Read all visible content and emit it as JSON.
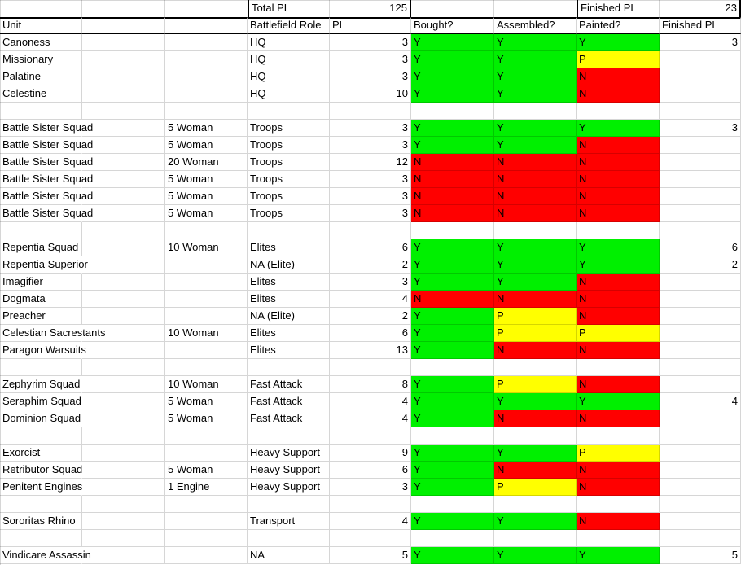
{
  "sheet": {
    "summary": {
      "total_pl_label": "Total PL",
      "total_pl_value": "125",
      "finished_pl_label": "Finished PL",
      "finished_pl_value": "23"
    },
    "headers": {
      "unit": "Unit",
      "role": "Battlefield Role",
      "pl": "PL",
      "bought": "Bought?",
      "assembled": "Assembled?",
      "painted": "Painted?",
      "finished_pl": "Finished PL"
    },
    "status_colors": {
      "Y": "#00f000",
      "P": "#ffff00",
      "N": "#ff0000"
    },
    "rows": [
      {
        "unit": "Canoness",
        "size": "",
        "role": "HQ",
        "pl": "3",
        "bought": "Y",
        "assembled": "Y",
        "painted": "Y",
        "finished": "3"
      },
      {
        "unit": "Missionary",
        "size": "",
        "role": "HQ",
        "pl": "3",
        "bought": "Y",
        "assembled": "Y",
        "painted": "P",
        "finished": ""
      },
      {
        "unit": "Palatine",
        "size": "",
        "role": "HQ",
        "pl": "3",
        "bought": "Y",
        "assembled": "Y",
        "painted": "N",
        "finished": ""
      },
      {
        "unit": "Celestine",
        "size": "",
        "role": "HQ",
        "pl": "10",
        "bought": "Y",
        "assembled": "Y",
        "painted": "N",
        "finished": ""
      },
      {
        "unit": "",
        "size": "",
        "role": "",
        "pl": "",
        "bought": "",
        "assembled": "",
        "painted": "",
        "finished": ""
      },
      {
        "unit": "Battle Sister Squad",
        "size": "5 Woman",
        "role": "Troops",
        "pl": "3",
        "bought": "Y",
        "assembled": "Y",
        "painted": "Y",
        "finished": "3"
      },
      {
        "unit": "Battle Sister Squad",
        "size": "5 Woman",
        "role": "Troops",
        "pl": "3",
        "bought": "Y",
        "assembled": "Y",
        "painted": "N",
        "finished": ""
      },
      {
        "unit": "Battle Sister Squad",
        "size": "20 Woman",
        "role": "Troops",
        "pl": "12",
        "bought": "N",
        "assembled": "N",
        "painted": "N",
        "finished": ""
      },
      {
        "unit": "Battle Sister Squad",
        "size": "5 Woman",
        "role": "Troops",
        "pl": "3",
        "bought": "N",
        "assembled": "N",
        "painted": "N",
        "finished": ""
      },
      {
        "unit": "Battle Sister Squad",
        "size": "5 Woman",
        "role": "Troops",
        "pl": "3",
        "bought": "N",
        "assembled": "N",
        "painted": "N",
        "finished": ""
      },
      {
        "unit": "Battle Sister Squad",
        "size": "5 Woman",
        "role": "Troops",
        "pl": "3",
        "bought": "N",
        "assembled": "N",
        "painted": "N",
        "finished": ""
      },
      {
        "unit": "",
        "size": "",
        "role": "",
        "pl": "",
        "bought": "",
        "assembled": "",
        "painted": "",
        "finished": ""
      },
      {
        "unit": "Repentia Squad",
        "size": "10 Woman",
        "role": "Elites",
        "pl": "6",
        "bought": "Y",
        "assembled": "Y",
        "painted": "Y",
        "finished": "6"
      },
      {
        "unit": "Repentia Superior",
        "size": "",
        "role": "NA (Elite)",
        "pl": "2",
        "bought": "Y",
        "assembled": "Y",
        "painted": "Y",
        "finished": "2"
      },
      {
        "unit": "Imagifier",
        "size": "",
        "role": "Elites",
        "pl": "3",
        "bought": "Y",
        "assembled": "Y",
        "painted": "N",
        "finished": ""
      },
      {
        "unit": "Dogmata",
        "size": "",
        "role": "Elites",
        "pl": "4",
        "bought": "N",
        "assembled": "N",
        "painted": "N",
        "finished": ""
      },
      {
        "unit": "Preacher",
        "size": "",
        "role": "NA (Elite)",
        "pl": "2",
        "bought": "Y",
        "assembled": "P",
        "painted": "N",
        "finished": ""
      },
      {
        "unit": "Celestian Sacrestants",
        "size": "10 Woman",
        "role": "Elites",
        "pl": "6",
        "bought": "Y",
        "assembled": "P",
        "painted": "P",
        "finished": ""
      },
      {
        "unit": "Paragon Warsuits",
        "size": "",
        "role": "Elites",
        "pl": "13",
        "bought": "Y",
        "assembled": "N",
        "painted": "N",
        "finished": ""
      },
      {
        "unit": "",
        "size": "",
        "role": "",
        "pl": "",
        "bought": "",
        "assembled": "",
        "painted": "",
        "finished": ""
      },
      {
        "unit": "Zephyrim Squad",
        "size": "10 Woman",
        "role": "Fast Attack",
        "pl": "8",
        "bought": "Y",
        "assembled": "P",
        "painted": "N",
        "finished": ""
      },
      {
        "unit": "Seraphim Squad",
        "size": "5 Woman",
        "role": "Fast Attack",
        "pl": "4",
        "bought": "Y",
        "assembled": "Y",
        "painted": "Y",
        "finished": "4"
      },
      {
        "unit": "Dominion Squad",
        "size": "5 Woman",
        "role": "Fast Attack",
        "pl": "4",
        "bought": "Y",
        "assembled": "N",
        "painted": "N",
        "finished": ""
      },
      {
        "unit": "",
        "size": "",
        "role": "",
        "pl": "",
        "bought": "",
        "assembled": "",
        "painted": "",
        "finished": ""
      },
      {
        "unit": "Exorcist",
        "size": "",
        "role": "Heavy Support",
        "pl": "9",
        "bought": "Y",
        "assembled": "Y",
        "painted": "P",
        "finished": ""
      },
      {
        "unit": "Retributor Squad",
        "size": "5 Woman",
        "role": "Heavy Support",
        "pl": "6",
        "bought": "Y",
        "assembled": "N",
        "painted": "N",
        "finished": ""
      },
      {
        "unit": "Penitent Engines",
        "size": "1 Engine",
        "role": "Heavy Support",
        "pl": "3",
        "bought": "Y",
        "assembled": "P",
        "painted": "N",
        "finished": ""
      },
      {
        "unit": "",
        "size": "",
        "role": "",
        "pl": "",
        "bought": "",
        "assembled": "",
        "painted": "",
        "finished": ""
      },
      {
        "unit": "Sororitas Rhino",
        "size": "",
        "role": "Transport",
        "pl": "4",
        "bought": "Y",
        "assembled": "Y",
        "painted": "N",
        "finished": ""
      },
      {
        "unit": "",
        "size": "",
        "role": "",
        "pl": "",
        "bought": "",
        "assembled": "",
        "painted": "",
        "finished": ""
      },
      {
        "unit": "Vindicare Assassin",
        "size": "",
        "role": "NA",
        "pl": "5",
        "bought": "Y",
        "assembled": "Y",
        "painted": "Y",
        "finished": "5"
      }
    ]
  }
}
